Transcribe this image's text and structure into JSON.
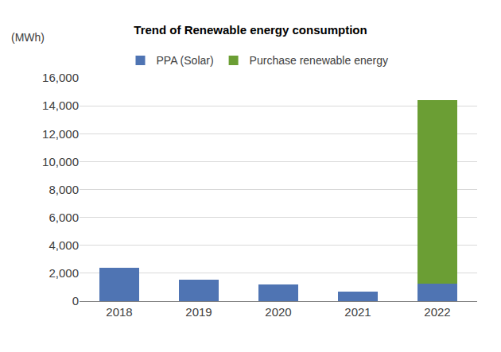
{
  "chart_data": {
    "type": "bar",
    "title": "Trend of Renewable energy consumption",
    "y_axis_label": "(MWh)",
    "categories": [
      "2018",
      "2019",
      "2020",
      "2021",
      "2022"
    ],
    "series": [
      {
        "name": "PPA (Solar)",
        "color": "#4f74b3",
        "values": [
          2400,
          1550,
          1200,
          700,
          1250
        ]
      },
      {
        "name": "Purchase renewable energy",
        "color": "#6b9e34",
        "values": [
          0,
          0,
          0,
          0,
          13150
        ]
      }
    ],
    "stacked": true,
    "ylim": [
      0,
      16000
    ],
    "yticks": [
      0,
      {
        "value": 2000,
        "label": "2,000"
      },
      {
        "value": 4000,
        "label": "4,000"
      },
      {
        "value": 6000,
        "label": "6,000"
      },
      {
        "value": 8000,
        "label": "8,000"
      },
      {
        "value": 10000,
        "label": "10,000"
      },
      {
        "value": 12000,
        "label": "12,000"
      },
      {
        "value": 14000,
        "label": "14,000"
      },
      {
        "value": 16000,
        "label": "16,000"
      }
    ],
    "grid": true,
    "legend": "top"
  }
}
